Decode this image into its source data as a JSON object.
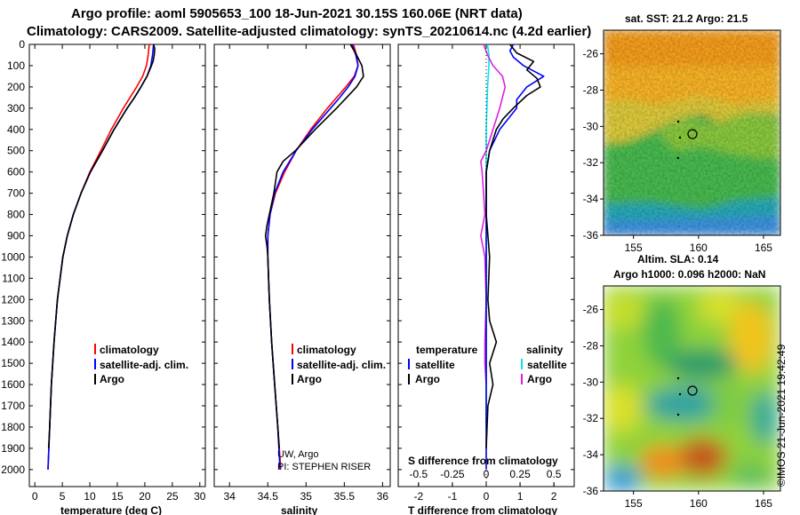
{
  "title": {
    "line1": "Argo profile: aoml 5905653_100 18-Jun-2021 30.15S 160.06E (NRT data)",
    "line2": "Climatology: CARS2009. Satellite-adjusted climatology: synTS_20210614.nc (4.2d earlier)"
  },
  "colors": {
    "climatology": "#ff0000",
    "satellite": "#0000ff",
    "argo": "#000000",
    "sat_S": "#00e5ee",
    "argo_S": "#dd22dd"
  },
  "depth_ticks": [
    "0",
    "100",
    "200",
    "300",
    "400",
    "500",
    "600",
    "700",
    "800",
    "900",
    "1000",
    "1100",
    "1200",
    "1300",
    "1400",
    "1500",
    "1600",
    "1700",
    "1800",
    "1900",
    "2000"
  ],
  "chart_data": [
    {
      "type": "line",
      "name": "temperature",
      "xlabel": "temperature (deg C)",
      "ylabel": "depth",
      "xlim": [
        -1,
        31
      ],
      "ylim": [
        0,
        2080
      ],
      "xticks": [
        "0",
        "5",
        "10",
        "15",
        "20",
        "25",
        "30"
      ],
      "legend": [
        "climatology",
        "satellite-adj. clim.",
        "Argo"
      ],
      "series": [
        {
          "name": "climatology",
          "depth": [
            0,
            50,
            100,
            150,
            200,
            250,
            300,
            400,
            500,
            600,
            700,
            800,
            900,
            1000,
            1200,
            1400,
            1600,
            1800,
            2000
          ],
          "values": [
            20.8,
            20.6,
            20.3,
            19.6,
            18.5,
            17.3,
            16.1,
            13.9,
            12.0,
            10.0,
            8.4,
            7.0,
            5.9,
            5.1,
            4.1,
            3.5,
            3.0,
            2.7,
            2.4
          ]
        },
        {
          "name": "satellite-adj. clim.",
          "depth": [
            0,
            50,
            100,
            150,
            200,
            250,
            300,
            400,
            500,
            600,
            700,
            800,
            900,
            1000,
            1200,
            1400,
            1600,
            1800,
            2000
          ],
          "values": [
            21.6,
            21.4,
            21.1,
            20.4,
            19.3,
            18.1,
            16.8,
            14.4,
            12.3,
            10.1,
            8.4,
            7.0,
            5.9,
            5.1,
            4.1,
            3.5,
            3.0,
            2.7,
            2.4
          ]
        },
        {
          "name": "Argo",
          "depth": [
            0,
            20,
            50,
            80,
            100,
            150,
            200,
            250,
            300,
            400,
            500,
            600,
            700,
            800,
            900,
            1000,
            1200,
            1400,
            1600,
            1800,
            1900
          ],
          "values": [
            21.6,
            21.8,
            21.7,
            21.5,
            21.2,
            20.4,
            19.3,
            18.1,
            16.8,
            14.4,
            12.3,
            10.1,
            8.4,
            7.0,
            5.9,
            5.1,
            4.1,
            3.5,
            3.0,
            2.7,
            2.5
          ]
        }
      ]
    },
    {
      "type": "line",
      "name": "salinity",
      "xlabel": "salinity",
      "ylabel": "depth",
      "xlim": [
        33.8,
        36.1
      ],
      "ylim": [
        0,
        2080
      ],
      "xticks": [
        "34",
        "34.5",
        "35",
        "35.5",
        "36"
      ],
      "legend": [
        "climatology",
        "satellite-adj. clim.",
        "Argo"
      ],
      "annotation": [
        "UW, Argo",
        "PI: STEPHEN RISER"
      ],
      "series": [
        {
          "name": "climatology",
          "depth": [
            0,
            50,
            100,
            150,
            200,
            250,
            300,
            400,
            500,
            600,
            700,
            800,
            900,
            1000,
            1200,
            1400,
            1600,
            1800,
            2000
          ],
          "values": [
            35.62,
            35.66,
            35.68,
            35.63,
            35.52,
            35.4,
            35.28,
            35.06,
            34.87,
            34.72,
            34.6,
            34.53,
            34.5,
            34.5,
            34.52,
            34.55,
            34.59,
            34.63,
            34.67
          ]
        },
        {
          "name": "satellite-adj. clim.",
          "depth": [
            0,
            50,
            100,
            150,
            200,
            250,
            300,
            400,
            500,
            600,
            700,
            800,
            900,
            1000,
            1200,
            1400,
            1600,
            1800,
            2000
          ],
          "values": [
            35.6,
            35.65,
            35.68,
            35.64,
            35.55,
            35.44,
            35.32,
            35.08,
            34.87,
            34.7,
            34.59,
            34.53,
            34.5,
            34.5,
            34.52,
            34.55,
            34.59,
            34.63,
            34.66
          ]
        },
        {
          "name": "Argo",
          "depth": [
            0,
            50,
            100,
            150,
            200,
            250,
            300,
            400,
            500,
            550,
            600,
            700,
            800,
            850,
            900,
            950,
            1000,
            1200,
            1400,
            1600,
            1800,
            1900
          ],
          "values": [
            35.58,
            35.66,
            35.73,
            35.75,
            35.66,
            35.53,
            35.4,
            35.12,
            34.86,
            34.7,
            34.62,
            34.58,
            34.52,
            34.49,
            34.47,
            34.49,
            34.5,
            34.52,
            34.55,
            34.59,
            34.63,
            34.65
          ]
        }
      ]
    },
    {
      "type": "line",
      "name": "difference",
      "xlabel": "T difference from climatology",
      "x2label": "S difference from climatology",
      "ylabel": "depth",
      "xlim": [
        -2.6,
        2.6
      ],
      "s_xlim": [
        -0.65,
        0.65
      ],
      "ylim": [
        0,
        2080
      ],
      "xticks": [
        "-2",
        "-1",
        "0",
        "1",
        "2"
      ],
      "s_xticks": [
        "-0.5",
        "-0.25",
        "0",
        "0.25",
        "0.5"
      ],
      "legend_temperature_title": "temperature",
      "legend_salinity_title": "salinity",
      "legend": [
        "satellite",
        "Argo",
        "satellite",
        "Argo"
      ],
      "series": [
        {
          "name": "temperature satellite",
          "depth": [
            0,
            30,
            60,
            100,
            150,
            200,
            260,
            300,
            400,
            500,
            600,
            800,
            1000,
            1400,
            1800,
            2000
          ],
          "values": [
            0.8,
            0.7,
            0.8,
            1.1,
            1.7,
            1.2,
            0.9,
            0.9,
            0.4,
            0.1,
            0,
            0,
            0,
            0,
            0,
            0
          ]
        },
        {
          "name": "temperature Argo",
          "depth": [
            0,
            40,
            80,
            120,
            160,
            200,
            240,
            300,
            350,
            400,
            450,
            500,
            600,
            800,
            1000,
            1200,
            1300,
            1400,
            1500,
            1600,
            1700,
            1900
          ],
          "values": [
            0.7,
            0.9,
            1.4,
            1.2,
            1.5,
            1.6,
            1.2,
            0.8,
            0.5,
            0.3,
            0.2,
            0.1,
            0,
            0,
            0.1,
            0.05,
            0.1,
            0.3,
            0.1,
            0.2,
            0.05,
            0
          ]
        },
        {
          "name": "salinity satellite",
          "depth": [
            0,
            50,
            100,
            200,
            400,
            600,
            800,
            1000,
            1400,
            1600,
            1800
          ],
          "values": [
            0.01,
            0.02,
            0.02,
            0.01,
            0.0,
            0.0,
            0.0,
            0.0,
            0.0,
            0.0,
            0.0
          ]
        },
        {
          "name": "salinity Argo",
          "depth": [
            0,
            50,
            100,
            150,
            200,
            300,
            400,
            500,
            550,
            600,
            700,
            800,
            900,
            1000,
            1200,
            1400,
            1500,
            1600
          ],
          "values": [
            -0.02,
            0.01,
            0.05,
            0.12,
            0.14,
            0.1,
            0.05,
            0.0,
            -0.04,
            -0.03,
            -0.02,
            -0.01,
            -0.04,
            -0.01,
            0.0,
            -0.01,
            -0.01,
            0.0
          ]
        }
      ]
    }
  ],
  "sst_map": {
    "title": "sat. SST: 21.2 Argo: 21.5",
    "xticks": [
      "155",
      "160",
      "165"
    ],
    "yticks": [
      "-26",
      "-28",
      "-30",
      "-32",
      "-34",
      "-36"
    ]
  },
  "sla_map": {
    "title1": "Altim. SLA: 0.14",
    "title2": "Argo h1000: 0.096 h2000: NaN",
    "xticks": [
      "155",
      "160",
      "165"
    ],
    "yticks": [
      "-26",
      "-28",
      "-30",
      "-32",
      "-34",
      "-36"
    ]
  },
  "stamp": "©IMOS 21-Jun-2021 19:42:49"
}
